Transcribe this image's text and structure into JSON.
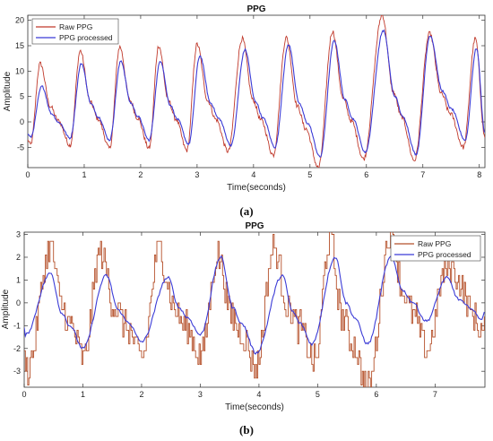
{
  "chart_data": [
    {
      "type": "line",
      "title": "PPG",
      "xlabel": "Time(seconds)",
      "ylabel": "Amplitude",
      "caption": "(a)",
      "xlim": [
        0,
        8.1
      ],
      "ylim": [
        -9,
        21
      ],
      "xticks": [
        0,
        1,
        2,
        3,
        4,
        5,
        6,
        7,
        8
      ],
      "yticks": [
        -5,
        0,
        5,
        10,
        15,
        20
      ],
      "grid": false,
      "legend": "top-left",
      "beat_period_s": 0.78,
      "series": [
        {
          "name": "Raw PPG",
          "color": "#c0392b",
          "peaks": [
            [
              0.22,
              11.5
            ],
            [
              0.93,
              14.0
            ],
            [
              1.63,
              14.8
            ],
            [
              2.32,
              15.0
            ],
            [
              3.0,
              15.3
            ],
            [
              3.8,
              16.4
            ],
            [
              4.58,
              16.6
            ],
            [
              5.4,
              17.8
            ],
            [
              6.28,
              21.0
            ],
            [
              7.12,
              17.4
            ],
            [
              7.93,
              16.4
            ]
          ],
          "troughs": [
            [
              0.05,
              -4.5
            ],
            [
              0.75,
              -4.6
            ],
            [
              1.45,
              -5.2
            ],
            [
              2.15,
              -5.2
            ],
            [
              2.82,
              -5.6
            ],
            [
              3.55,
              -5.8
            ],
            [
              4.35,
              -6.5
            ],
            [
              5.15,
              -9.0
            ],
            [
              5.95,
              -7.3
            ],
            [
              6.85,
              -7.6
            ],
            [
              7.72,
              -5.0
            ]
          ]
        },
        {
          "name": "PPG processed",
          "color": "#3b3bd6",
          "peaks": [
            [
              0.25,
              7.0
            ],
            [
              0.95,
              11.5
            ],
            [
              1.65,
              12.0
            ],
            [
              2.35,
              12.0
            ],
            [
              3.05,
              13.0
            ],
            [
              3.85,
              14.2
            ],
            [
              4.62,
              15.2
            ],
            [
              5.43,
              16.0
            ],
            [
              6.3,
              18.0
            ],
            [
              7.13,
              17.0
            ],
            [
              7.95,
              14.5
            ]
          ],
          "troughs": [
            [
              0.05,
              -3.0
            ],
            [
              0.75,
              -3.2
            ],
            [
              1.45,
              -3.6
            ],
            [
              2.15,
              -3.6
            ],
            [
              2.85,
              -4.4
            ],
            [
              3.6,
              -4.6
            ],
            [
              4.38,
              -5.0
            ],
            [
              5.18,
              -6.9
            ],
            [
              5.98,
              -6.0
            ],
            [
              6.88,
              -6.4
            ],
            [
              7.75,
              -3.6
            ]
          ]
        }
      ]
    },
    {
      "type": "line",
      "title": "PPG",
      "xlabel": "Time(seconds)",
      "ylabel": "Amplitude",
      "caption": "(b)",
      "xlim": [
        0,
        7.85
      ],
      "ylim": [
        -3.7,
        3.1
      ],
      "xticks": [
        0,
        1,
        2,
        3,
        4,
        5,
        6,
        7
      ],
      "yticks": [
        -3,
        -2,
        -1,
        0,
        1,
        2,
        3
      ],
      "grid": false,
      "legend": "top-right",
      "series": [
        {
          "name": "Raw PPG",
          "color": "#b5502a",
          "peaks": [
            [
              0.45,
              2.4
            ],
            [
              1.3,
              2.2
            ],
            [
              2.3,
              2.3
            ],
            [
              3.3,
              2.1
            ],
            [
              4.25,
              2.5
            ],
            [
              5.2,
              2.8
            ],
            [
              6.25,
              3.1
            ],
            [
              7.2,
              1.6
            ]
          ],
          "troughs": [
            [
              0.05,
              -2.9
            ],
            [
              1.0,
              -2.4
            ],
            [
              2.0,
              -2.4
            ],
            [
              3.0,
              -2.3
            ],
            [
              3.95,
              -2.8
            ],
            [
              4.95,
              -2.6
            ],
            [
              5.85,
              -3.7
            ],
            [
              6.85,
              -2.0
            ]
          ]
        },
        {
          "name": "PPG processed",
          "color": "#3b3bd6",
          "peaks": [
            [
              0.45,
              1.3
            ],
            [
              1.4,
              1.2
            ],
            [
              2.45,
              1.1
            ],
            [
              3.35,
              2.0
            ],
            [
              4.4,
              1.2
            ],
            [
              5.3,
              2.0
            ],
            [
              6.25,
              2.0
            ],
            [
              7.2,
              1.1
            ]
          ],
          "troughs": [
            [
              0.02,
              -1.4
            ],
            [
              1.0,
              -2.0
            ],
            [
              2.0,
              -1.7
            ],
            [
              3.0,
              -1.4
            ],
            [
              3.95,
              -2.2
            ],
            [
              4.9,
              -1.8
            ],
            [
              5.85,
              -1.8
            ],
            [
              6.85,
              -0.8
            ],
            [
              7.8,
              -0.7
            ]
          ]
        }
      ]
    }
  ]
}
